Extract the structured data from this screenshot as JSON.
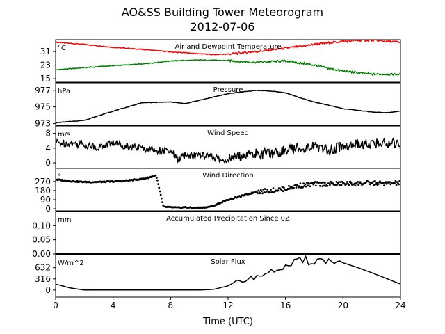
{
  "figure": {
    "title_line1": "AO&SS Building Tower Meteorogram",
    "title_line2": "2012-07-06",
    "xlabel": "Time (UTC)",
    "x_ticks": [
      "0",
      "4",
      "8",
      "12",
      "16",
      "20",
      "24"
    ]
  },
  "chart_data": [
    {
      "type": "line",
      "title": "Air and Dewpoint Temperature",
      "ylabel": "°C",
      "ylim": [
        13,
        38
      ],
      "y_ticks": [
        15,
        23,
        31
      ],
      "y_tick_labels": [
        "15",
        "23",
        "31"
      ],
      "series": [
        {
          "color": "#ff0000",
          "x": [
            0,
            2,
            4,
            6,
            8,
            10,
            11,
            12,
            14,
            16,
            17,
            18,
            20,
            21,
            22,
            24
          ],
          "y": [
            36.5,
            35.2,
            33.5,
            32.3,
            30.8,
            29.7,
            29.2,
            29.5,
            31.0,
            33.0,
            34.0,
            35.3,
            37.0,
            37.5,
            37.6,
            36.5
          ]
        },
        {
          "color": "#008000",
          "x": [
            0,
            2,
            4,
            6,
            8,
            10,
            12,
            13,
            14,
            16,
            18,
            19,
            20,
            21,
            22,
            24
          ],
          "y": [
            20.2,
            21.5,
            22.7,
            23.6,
            25.5,
            26.0,
            25.7,
            25.0,
            24.7,
            25.5,
            23.0,
            21.0,
            19.5,
            18.5,
            17.7,
            17.5
          ]
        }
      ]
    },
    {
      "type": "line",
      "title": "Pressure",
      "ylabel": "hPa",
      "ylim": [
        972.8,
        977.9
      ],
      "y_ticks": [
        973,
        975,
        977
      ],
      "y_tick_labels": [
        "973",
        "975",
        "977"
      ],
      "series": [
        {
          "color": "#000000",
          "x": [
            0,
            2,
            4,
            6,
            8,
            9,
            10,
            12,
            14,
            15,
            16,
            17,
            18,
            19,
            20,
            22,
            23,
            24
          ],
          "y": [
            973.1,
            973.4,
            974.5,
            975.5,
            975.6,
            975.4,
            975.8,
            976.6,
            977.0,
            976.9,
            976.7,
            976.1,
            975.6,
            975.2,
            974.8,
            974.4,
            974.3,
            974.5
          ]
        }
      ]
    },
    {
      "type": "line",
      "title": "Wind Speed",
      "ylabel": "m/s",
      "ylim": [
        -1.5,
        10
      ],
      "y_ticks": [
        0,
        4,
        8
      ],
      "y_tick_labels": [
        "0",
        "4",
        "8"
      ],
      "series": [
        {
          "color": "#000000",
          "x": [
            0,
            1,
            2,
            3,
            4,
            5,
            6,
            7,
            8,
            8.5,
            9,
            10,
            11,
            11.5,
            12,
            13,
            14,
            15,
            16,
            17,
            18,
            19,
            20,
            21,
            22,
            23,
            24
          ],
          "y": [
            5.5,
            5.3,
            5.0,
            4.2,
            5.5,
            4.5,
            4.0,
            3.5,
            3.0,
            1.0,
            2.0,
            2.0,
            1.5,
            0.5,
            1.0,
            2.0,
            2.5,
            2.5,
            3.5,
            4.0,
            4.5,
            3.5,
            4.5,
            5.0,
            5.0,
            5.5,
            5.5
          ]
        }
      ]
    },
    {
      "type": "scatter",
      "title": "Wind Direction",
      "ylabel": "°",
      "ylim": [
        -20,
        400
      ],
      "y_ticks": [
        0,
        90,
        180,
        270
      ],
      "y_tick_labels": [
        "0",
        "90",
        "180",
        "270"
      ],
      "series": [
        {
          "color": "#000000",
          "x": [
            0,
            1,
            2,
            3,
            4,
            5,
            6,
            6.5,
            7,
            7.5,
            8,
            8.5,
            9,
            9.5,
            10,
            10.5,
            11,
            11.5,
            12,
            12.5,
            13,
            13.5,
            14,
            15,
            16,
            17,
            18,
            19,
            20,
            21,
            22,
            23,
            24
          ],
          "y": [
            290,
            275,
            265,
            265,
            270,
            280,
            295,
            310,
            330,
            20,
            15,
            10,
            15,
            10,
            10,
            15,
            30,
            60,
            90,
            110,
            130,
            150,
            170,
            180,
            200,
            230,
            245,
            245,
            250,
            250,
            255,
            250,
            255
          ]
        }
      ]
    },
    {
      "type": "line",
      "title": "Accumulated Precipitation Since 0Z",
      "ylabel": "mm",
      "ylim": [
        0,
        0.15
      ],
      "y_ticks": [
        0,
        0.05,
        0.1
      ],
      "y_tick_labels": [
        "0.00",
        "0.05",
        "0.10"
      ],
      "series": [
        {
          "color": "#000000",
          "x": [
            0,
            24
          ],
          "y": [
            0,
            0
          ]
        }
      ]
    },
    {
      "type": "line",
      "title": "Solar Flux",
      "ylabel": "W/m^2",
      "ylim": [
        -200,
        1000
      ],
      "y_ticks": [
        0,
        316,
        632
      ],
      "y_tick_labels": [
        "0",
        "316",
        "632"
      ],
      "series": [
        {
          "color": "#000000",
          "x": [
            0,
            1,
            2,
            4,
            6,
            8,
            10,
            11,
            12,
            13,
            14,
            15,
            16,
            17,
            18,
            19,
            20,
            21,
            22,
            23,
            24
          ],
          "y": [
            170,
            60,
            0,
            0,
            0,
            0,
            0,
            20,
            120,
            270,
            380,
            520,
            660,
            790,
            850,
            840,
            770,
            640,
            490,
            330,
            170
          ]
        }
      ]
    }
  ]
}
